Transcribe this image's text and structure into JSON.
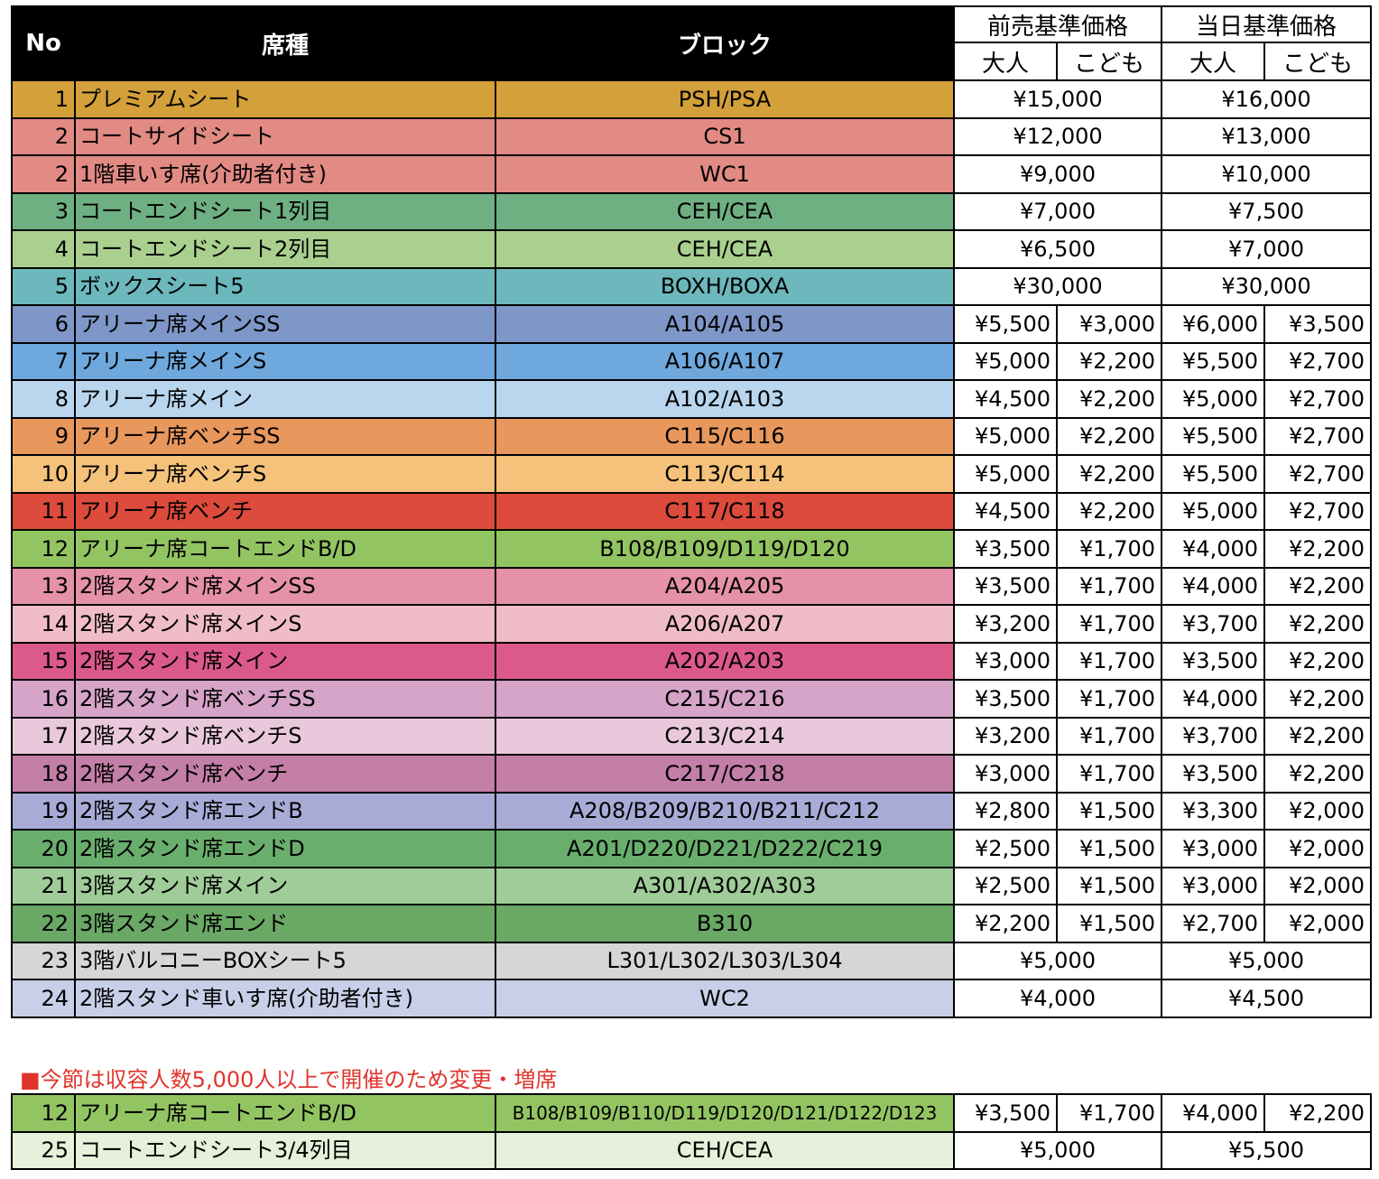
{
  "header": {
    "no": "No",
    "seat": "席種",
    "block": "ブロック",
    "presale": "前売基準価格",
    "sameday": "当日基準価格",
    "adult": "大人",
    "child": "こども"
  },
  "rows": [
    {
      "no": "1",
      "seat": "プレミアムシート",
      "block": "PSH/PSA",
      "color": "#d4a03a",
      "presale": "¥15,000",
      "sameday": "¥16,000"
    },
    {
      "no": "2",
      "seat": "コートサイドシート",
      "block": "CS1",
      "color": "#e28a84",
      "presale": "¥12,000",
      "sameday": "¥13,000"
    },
    {
      "no": "2",
      "seat": "1階車いす席(介助者付き)",
      "block": "WC1",
      "color": "#e28a84",
      "presale": "¥9,000",
      "sameday": "¥10,000"
    },
    {
      "no": "3",
      "seat": "コートエンドシート1列目",
      "block": "CEH/CEA",
      "color": "#6fb083",
      "presale": "¥7,000",
      "sameday": "¥7,500"
    },
    {
      "no": "4",
      "seat": "コートエンドシート2列目",
      "block": "CEH/CEA",
      "color": "#a9d08e",
      "presale": "¥6,500",
      "sameday": "¥7,000"
    },
    {
      "no": "5",
      "seat": "ボックスシート5",
      "block": "BOXH/BOXA",
      "color": "#6cb8bc",
      "presale": "¥30,000",
      "sameday": "¥30,000"
    },
    {
      "no": "6",
      "seat": "アリーナ席メインSS",
      "block": "A104/A105",
      "color": "#7e96c8",
      "pa": "¥5,500",
      "pc": "¥3,000",
      "sa": "¥6,000",
      "sc": "¥3,500"
    },
    {
      "no": "7",
      "seat": "アリーナ席メインS",
      "block": "A106/A107",
      "color": "#6fa8dc",
      "pa": "¥5,000",
      "pc": "¥2,200",
      "sa": "¥5,500",
      "sc": "¥2,700"
    },
    {
      "no": "8",
      "seat": "アリーナ席メイン",
      "block": "A102/A103",
      "color": "#b9d6ee",
      "pa": "¥4,500",
      "pc": "¥2,200",
      "sa": "¥5,000",
      "sc": "¥2,700"
    },
    {
      "no": "9",
      "seat": "アリーナ席ベンチSS",
      "block": "C115/C116",
      "color": "#e8975d",
      "pa": "¥5,000",
      "pc": "¥2,200",
      "sa": "¥5,500",
      "sc": "¥2,700"
    },
    {
      "no": "10",
      "seat": "アリーナ席ベンチS",
      "block": "C113/C114",
      "color": "#f4c27a",
      "pa": "¥5,000",
      "pc": "¥2,200",
      "sa": "¥5,500",
      "sc": "¥2,700"
    },
    {
      "no": "11",
      "seat": "アリーナ席ベンチ",
      "block": "C117/C118",
      "color": "#dc4b3c",
      "pa": "¥4,500",
      "pc": "¥2,200",
      "sa": "¥5,000",
      "sc": "¥2,700"
    },
    {
      "no": "12",
      "seat": "アリーナ席コートエンドB/D",
      "block": "B108/B109/D119/D120",
      "color": "#93c462",
      "pa": "¥3,500",
      "pc": "¥1,700",
      "sa": "¥4,000",
      "sc": "¥2,200"
    },
    {
      "no": "13",
      "seat": "2階スタンド席メインSS",
      "block": "A204/A205",
      "color": "#e591a9",
      "pa": "¥3,500",
      "pc": "¥1,700",
      "sa": "¥4,000",
      "sc": "¥2,200"
    },
    {
      "no": "14",
      "seat": "2階スタンド席メインS",
      "block": "A206/A207",
      "color": "#efbcc8",
      "pa": "¥3,200",
      "pc": "¥1,700",
      "sa": "¥3,700",
      "sc": "¥2,200"
    },
    {
      "no": "15",
      "seat": "2階スタンド席メイン",
      "block": "A202/A203",
      "color": "#dc5a8a",
      "pa": "¥3,000",
      "pc": "¥1,700",
      "sa": "¥3,500",
      "sc": "¥2,200"
    },
    {
      "no": "16",
      "seat": "2階スタンド席ベンチSS",
      "block": "C215/C216",
      "color": "#d6a4c8",
      "pa": "¥3,500",
      "pc": "¥1,700",
      "sa": "¥4,000",
      "sc": "¥2,200"
    },
    {
      "no": "17",
      "seat": "2階スタンド席ベンチS",
      "block": "C213/C214",
      "color": "#e9c8dc",
      "pa": "¥3,200",
      "pc": "¥1,700",
      "sa": "¥3,700",
      "sc": "¥2,200"
    },
    {
      "no": "18",
      "seat": "2階スタンド席ベンチ",
      "block": "C217/C218",
      "color": "#c47fa8",
      "pa": "¥3,000",
      "pc": "¥1,700",
      "sa": "¥3,500",
      "sc": "¥2,200"
    },
    {
      "no": "19",
      "seat": "2階スタンド席エンドB",
      "block": "A208/B209/B210/B211/C212",
      "color": "#a8abd6",
      "pa": "¥2,800",
      "pc": "¥1,500",
      "sa": "¥3,300",
      "sc": "¥2,000"
    },
    {
      "no": "20",
      "seat": "2階スタンド席エンドD",
      "block": "A201/D220/D221/D222/C219",
      "color": "#6aae6e",
      "pa": "¥2,500",
      "pc": "¥1,500",
      "sa": "¥3,000",
      "sc": "¥2,000"
    },
    {
      "no": "21",
      "seat": "3階スタンド席メイン",
      "block": "A301/A302/A303",
      "color": "#9fcc98",
      "pa": "¥2,500",
      "pc": "¥1,500",
      "sa": "¥3,000",
      "sc": "¥2,000"
    },
    {
      "no": "22",
      "seat": "3階スタンド席エンド",
      "block": "B310",
      "color": "#6aa866",
      "pa": "¥2,200",
      "pc": "¥1,500",
      "sa": "¥2,700",
      "sc": "¥2,000"
    },
    {
      "no": "23",
      "seat": "3階バルコニーBOXシート5",
      "block": "L301/L302/L303/L304",
      "color": "#d6d6d6",
      "presale": "¥5,000",
      "sameday": "¥5,000"
    },
    {
      "no": "24",
      "seat": "2階スタンド車いす席(介助者付き)",
      "block": "WC2",
      "color": "#c8cfe8",
      "presale": "¥4,000",
      "sameday": "¥4,500"
    }
  ],
  "notice": "■今節は収容人数5,000人以上で開催のため変更・増席",
  "extra_rows": [
    {
      "no": "12",
      "seat": "アリーナ席コートエンドB/D",
      "block": "B108/B109/B110/D119/D120/D121/D122/D123",
      "color": "#93c462",
      "small": true,
      "pa": "¥3,500",
      "pc": "¥1,700",
      "sa": "¥4,000",
      "sc": "¥2,200"
    },
    {
      "no": "25",
      "seat": "コートエンドシート3/4列目",
      "block": "CEH/CEA",
      "color": "#e6f0da",
      "presale": "¥5,000",
      "sameday": "¥5,500"
    }
  ]
}
